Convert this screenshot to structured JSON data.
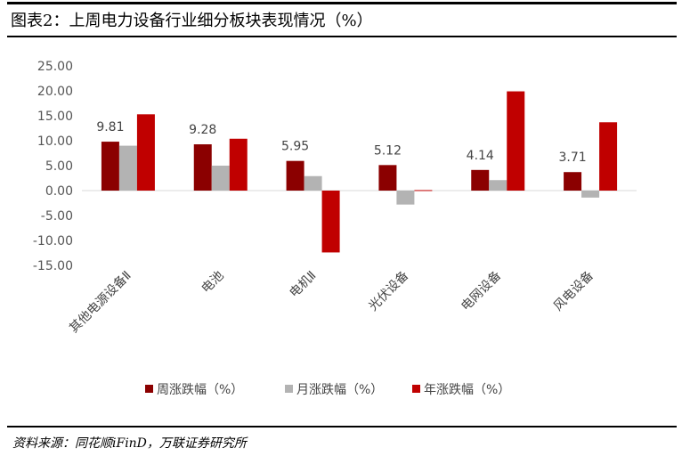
{
  "figure": {
    "title": "图表2：上周电力设备行业细分板块表现情况（%）",
    "source": "资料来源：同花顺iFinD，万联证券研究所"
  },
  "chart_data": {
    "type": "bar",
    "categories": [
      "其他电源设备Ⅱ",
      "电池",
      "电机Ⅱ",
      "光伏设备",
      "电网设备",
      "风电设备"
    ],
    "series": [
      {
        "name": "周涨跌幅（%）",
        "color": "#8B0000",
        "values": [
          9.81,
          9.28,
          5.95,
          5.12,
          4.14,
          3.71
        ]
      },
      {
        "name": "月涨跌幅（%）",
        "color": "#B3B3B3",
        "values": [
          9.0,
          5.0,
          2.9,
          -2.8,
          2.1,
          -1.4
        ]
      },
      {
        "name": "年涨跌幅（%）",
        "color": "#C00000",
        "values": [
          15.3,
          10.4,
          -12.4,
          0.1,
          19.9,
          13.7
        ]
      }
    ],
    "data_labels": [
      "9.81",
      "9.28",
      "5.95",
      "5.12",
      "4.14",
      "3.71"
    ],
    "yticks": [
      "25.00",
      "20.00",
      "15.00",
      "10.00",
      "5.00",
      "0.00",
      "-5.00",
      "-10.00",
      "-15.00"
    ],
    "ylim": [
      -15,
      25
    ],
    "grid": false,
    "legend_position": "bottom",
    "xlabel": "",
    "ylabel": ""
  }
}
